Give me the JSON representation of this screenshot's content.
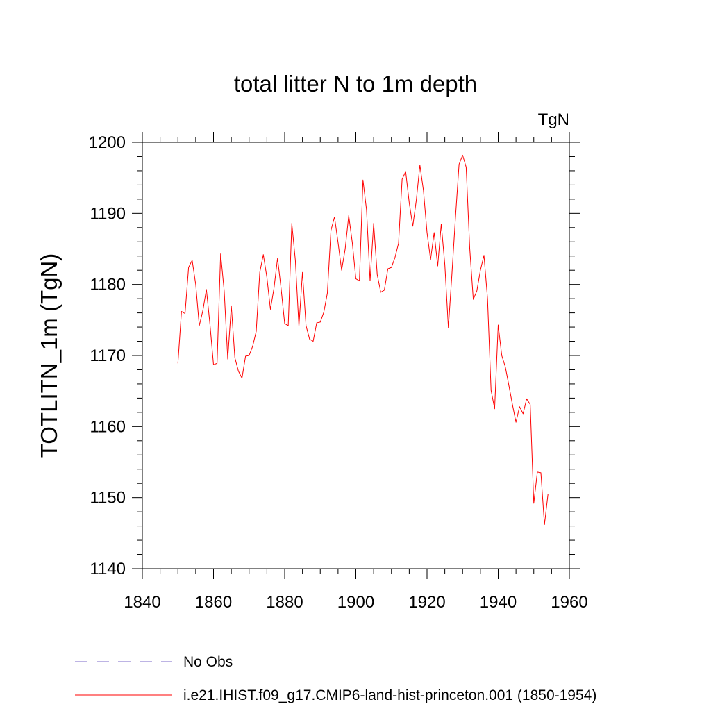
{
  "chart_data": {
    "type": "line",
    "title": "total litter N to 1m depth",
    "units_label": "TgN",
    "ylabel": "TOTLITN_1m  (TgN)",
    "xlabel": "",
    "xlim": [
      1840,
      1960
    ],
    "ylim": [
      1140,
      1200
    ],
    "x_ticks": [
      1840,
      1860,
      1880,
      1900,
      1920,
      1940,
      1960
    ],
    "y_ticks": [
      1140,
      1150,
      1160,
      1170,
      1180,
      1190,
      1200
    ],
    "grid": false,
    "legend_position": "bottom",
    "series": [
      {
        "name": "No Obs",
        "color": "#7b68c8",
        "dash": "dashed",
        "x": [],
        "y": []
      },
      {
        "name": "i.e21.IHIST.f09_g17.CMIP6-land-hist-princeton.001 (1850-1954)",
        "color": "#ff0000",
        "dash": "solid",
        "x": [
          1850,
          1851,
          1852,
          1853,
          1854,
          1855,
          1856,
          1857,
          1858,
          1859,
          1860,
          1861,
          1862,
          1863,
          1864,
          1865,
          1866,
          1867,
          1868,
          1869,
          1870,
          1871,
          1872,
          1873,
          1874,
          1875,
          1876,
          1877,
          1878,
          1879,
          1880,
          1881,
          1882,
          1883,
          1884,
          1885,
          1886,
          1887,
          1888,
          1889,
          1890,
          1891,
          1892,
          1893,
          1894,
          1895,
          1896,
          1897,
          1898,
          1899,
          1900,
          1901,
          1902,
          1903,
          1904,
          1905,
          1906,
          1907,
          1908,
          1909,
          1910,
          1911,
          1912,
          1913,
          1914,
          1915,
          1916,
          1917,
          1918,
          1919,
          1920,
          1921,
          1922,
          1923,
          1924,
          1925,
          1926,
          1927,
          1928,
          1929,
          1930,
          1931,
          1932,
          1933,
          1934,
          1935,
          1936,
          1937,
          1938,
          1939,
          1940,
          1941,
          1942,
          1943,
          1944,
          1945,
          1946,
          1947,
          1948,
          1949,
          1950,
          1951,
          1952,
          1953,
          1954
        ],
        "y": [
          1168.9,
          1176.2,
          1175.9,
          1182.4,
          1183.4,
          1180.0,
          1174.2,
          1176.3,
          1179.3,
          1174.4,
          1168.7,
          1168.9,
          1184.3,
          1179.1,
          1169.5,
          1177.0,
          1169.7,
          1167.8,
          1166.8,
          1169.9,
          1170.0,
          1171.3,
          1173.4,
          1181.7,
          1184.2,
          1181.0,
          1176.5,
          1179.5,
          1183.7,
          1179.4,
          1174.5,
          1174.2,
          1188.6,
          1183.4,
          1174.1,
          1181.7,
          1174.2,
          1172.3,
          1172.0,
          1174.6,
          1174.7,
          1176.1,
          1178.8,
          1187.6,
          1189.5,
          1185.9,
          1182.0,
          1185.0,
          1189.7,
          1185.9,
          1180.8,
          1180.5,
          1194.7,
          1190.5,
          1180.5,
          1188.6,
          1181.4,
          1178.9,
          1179.2,
          1182.2,
          1182.4,
          1183.8,
          1185.8,
          1194.8,
          1195.9,
          1191.5,
          1188.2,
          1191.9,
          1196.8,
          1193.2,
          1187.3,
          1183.5,
          1187.3,
          1182.6,
          1188.5,
          1182.8,
          1173.9,
          1181.5,
          1189.5,
          1196.9,
          1198.2,
          1196.5,
          1185.1,
          1177.9,
          1179.1,
          1182.0,
          1184.1,
          1178.0,
          1165.1,
          1162.5,
          1174.3,
          1170.0,
          1168.4,
          1165.8,
          1163.1,
          1160.6,
          1162.8,
          1161.8,
          1163.9,
          1163.1,
          1149.2,
          1153.6,
          1153.5,
          1146.2,
          1150.5
        ]
      }
    ]
  }
}
